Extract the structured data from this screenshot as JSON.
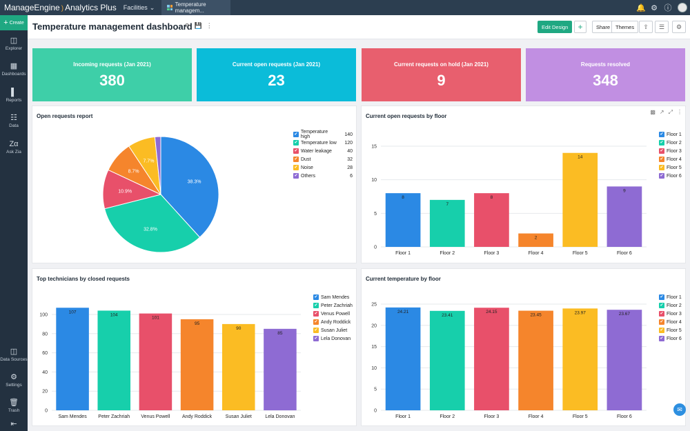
{
  "app": {
    "brand_name": "ManageEngine",
    "brand_product": "Analytics Plus",
    "workspace": "Facilities",
    "tab_label": "Temperature managem..."
  },
  "sidebar": {
    "create_label": "Create",
    "items": [
      {
        "label": "Explorer",
        "icon": "explorer-icon"
      },
      {
        "label": "Dashboards",
        "icon": "dashboards-icon"
      },
      {
        "label": "Reports",
        "icon": "reports-icon"
      },
      {
        "label": "Data",
        "icon": "data-icon"
      },
      {
        "label": "Ask Zia",
        "icon": "ask-zia-icon"
      }
    ],
    "bottom_items": [
      {
        "label": "Data Sources",
        "icon": "data-sources-icon"
      },
      {
        "label": "Settings",
        "icon": "settings-icon"
      },
      {
        "label": "Trash",
        "icon": "trash-icon"
      }
    ]
  },
  "titlebar": {
    "title": "Temperature management dashboard",
    "edit_design": "Edit Design",
    "share": "Share",
    "themes": "Themes"
  },
  "kpis": [
    {
      "label": "Incoming requests (Jan 2021)",
      "value": "380",
      "color": "#3ecfa8"
    },
    {
      "label": "Current open requests (Jan 2021)",
      "value": "23",
      "color": "#0bbcd9"
    },
    {
      "label": "Current requests on hold (Jan 2021)",
      "value": "9",
      "color": "#e85f6e"
    },
    {
      "label": "Requests resolved",
      "value": "348",
      "color": "#c18fe2"
    }
  ],
  "chart_data": [
    {
      "type": "pie",
      "title": "Open requests report",
      "categories": [
        "Temperature high",
        "Temperature low",
        "Water leakage",
        "Dust",
        "Noise",
        "Others"
      ],
      "values": [
        140,
        120,
        40,
        32,
        28,
        6
      ],
      "labels": [
        "38.3%",
        "32.8%",
        "10.9%",
        "8.7%",
        "7.7%",
        ""
      ],
      "colors": [
        "#2b89e4",
        "#17cfab",
        "#e8506a",
        "#f5852c",
        "#fbbc23",
        "#8e6bd3"
      ]
    },
    {
      "type": "bar",
      "title": "Current open requests by floor",
      "categories": [
        "Floor 1",
        "Floor 2",
        "Floor 3",
        "Floor 4",
        "Floor 5",
        "Floor 6"
      ],
      "values": [
        8,
        7,
        8,
        2,
        14,
        9
      ],
      "ylim": [
        0,
        15
      ],
      "yticks": [
        0,
        5,
        10,
        15
      ],
      "colors": [
        "#2b89e4",
        "#17cfab",
        "#e8506a",
        "#f5852c",
        "#fbbc23",
        "#8e6bd3"
      ]
    },
    {
      "type": "bar",
      "title": "Top technicians by closed requests",
      "categories": [
        "Sam Mendes",
        "Peter Zachriah",
        "Venus Powell",
        "Andy Roddick",
        "Susan Juliet",
        "Lela Donovan"
      ],
      "values": [
        107,
        104,
        101,
        95,
        90,
        85
      ],
      "ylim": [
        0,
        100
      ],
      "yticks": [
        0,
        20,
        40,
        60,
        80,
        100
      ],
      "colors": [
        "#2b89e4",
        "#17cfab",
        "#e8506a",
        "#f5852c",
        "#fbbc23",
        "#8e6bd3"
      ]
    },
    {
      "type": "bar",
      "title": "Current temperature by floor",
      "categories": [
        "Floor 1",
        "Floor 2",
        "Floor 3",
        "Floor 4",
        "Floor 5",
        "Floor 6"
      ],
      "values": [
        24.21,
        23.41,
        24.15,
        23.45,
        23.97,
        23.67
      ],
      "ylim": [
        0,
        25
      ],
      "yticks": [
        0,
        5,
        10,
        15,
        20,
        25
      ],
      "colors": [
        "#2b89e4",
        "#17cfab",
        "#e8506a",
        "#f5852c",
        "#fbbc23",
        "#8e6bd3"
      ]
    }
  ]
}
